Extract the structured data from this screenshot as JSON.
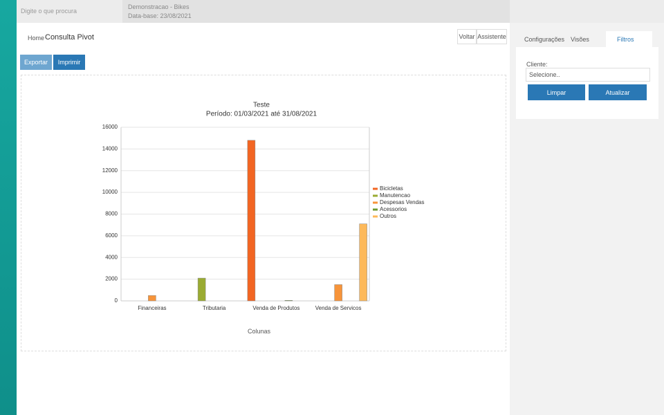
{
  "topbar": {
    "search_placeholder": "Digite o que procura",
    "company": "Demonstracao - Bikes",
    "date": "Data-base: 23/08/2021"
  },
  "breadcrumb": {
    "home": "Home",
    "current": "Consulta Pivot"
  },
  "header_buttons": [
    "Voltar",
    "Assistente"
  ],
  "toolbar": [
    "Exportar",
    "Imprimir"
  ],
  "tabs": [
    "Configurações",
    "Visões",
    "Filtros"
  ],
  "filter": {
    "label": "Cliente:",
    "placeholder": "Selecione..",
    "buttons": [
      "Limpar",
      "Atualizar"
    ]
  },
  "chart_selector": "Colunas",
  "chart_data": {
    "type": "bar",
    "title": "Teste",
    "subtitle": "Período: 01/03/2021 até 31/08/2021",
    "categories": [
      "Financeiras",
      "Tributaria",
      "Venda de Produtos",
      "Venda de Servicos"
    ],
    "series": [
      {
        "name": "Bicicletas",
        "color": "#f26522",
        "values": [
          null,
          null,
          14800,
          null
        ]
      },
      {
        "name": "Manutencao",
        "color": "#9aab32",
        "values": [
          null,
          2100,
          null,
          null
        ]
      },
      {
        "name": "Despesas Vendas",
        "color": "#f7943a",
        "values": [
          500,
          null,
          null,
          1500
        ]
      },
      {
        "name": "Acessorios",
        "color": "#6c9a2e",
        "values": [
          null,
          null,
          50,
          null
        ]
      },
      {
        "name": "Outros",
        "color": "#fdb95a",
        "values": [
          null,
          null,
          null,
          7100
        ]
      }
    ],
    "ylim": [
      0,
      16000
    ],
    "yticks": [
      0,
      2000,
      4000,
      6000,
      8000,
      10000,
      12000,
      14000,
      16000
    ],
    "grid": true,
    "legend": "right"
  }
}
